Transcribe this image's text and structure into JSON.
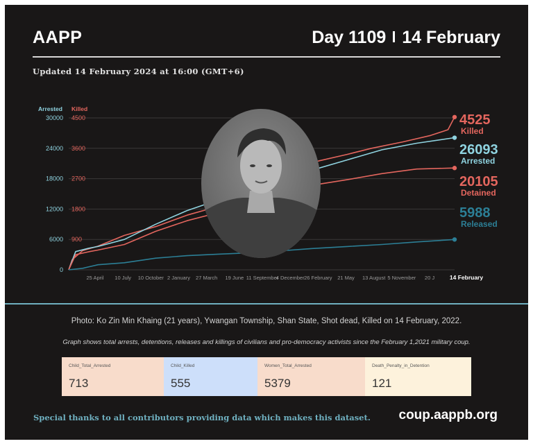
{
  "header": {
    "brand": "AAPP",
    "day_label": "Day 1109",
    "date_label": "14 February",
    "updated": "Updated 14 February 2024 at 16:00 (GMT+6)"
  },
  "chart_data": {
    "type": "line",
    "left_axis_label": "Arrested",
    "right_axis_label": "Killed",
    "arrested_ticks": [
      0,
      6000,
      12000,
      18000,
      24000,
      30000
    ],
    "killed_ticks": [
      "",
      "900",
      "1800",
      "2700",
      "3600",
      "4500"
    ],
    "ylim_arrested": [
      0,
      30000
    ],
    "ylim_killed": [
      0,
      4500
    ],
    "x_ticks": [
      "25 April",
      "10 July",
      "10 October",
      "2 January",
      "27 March",
      "19 June",
      "11 September",
      "4 December",
      "26 February",
      "21 May",
      "13 August",
      "5 November",
      "20 J",
      "14 February"
    ],
    "x_range_days": [
      0,
      1109
    ],
    "grid": true,
    "series": [
      {
        "name": "Killed",
        "axis": "killed",
        "color": "#e4665e",
        "final_value": 4525,
        "x": [
          0,
          10,
          40,
          84,
          160,
          250,
          340,
          430,
          500,
          560,
          600,
          650,
          720,
          800,
          870,
          960,
          1040,
          1090,
          1109
        ],
        "values": [
          0,
          300,
          570,
          700,
          1020,
          1280,
          1620,
          1880,
          2130,
          2560,
          2640,
          3000,
          3230,
          3420,
          3600,
          3790,
          3980,
          4150,
          4525
        ]
      },
      {
        "name": "Arrested",
        "axis": "arrested",
        "color": "#8fd3e0",
        "final_value": 26093,
        "x": [
          0,
          20,
          60,
          84,
          160,
          250,
          340,
          430,
          500,
          560,
          600,
          700,
          800,
          900,
          1000,
          1109
        ],
        "values": [
          0,
          3600,
          4300,
          4600,
          6000,
          9000,
          11700,
          13800,
          14900,
          15600,
          17500,
          19700,
          21700,
          23700,
          25000,
          26093
        ]
      },
      {
        "name": "Detained",
        "axis": "arrested",
        "color": "#e4665e",
        "final_value": 20105,
        "x": [
          0,
          20,
          60,
          84,
          160,
          250,
          340,
          430,
          500,
          560,
          600,
          700,
          800,
          900,
          1000,
          1109
        ],
        "values": [
          0,
          3000,
          3600,
          3900,
          5000,
          7600,
          9700,
          11300,
          12300,
          13000,
          15300,
          16700,
          17800,
          19000,
          19900,
          20105
        ]
      },
      {
        "name": "Released",
        "axis": "arrested",
        "color": "#2c7f96",
        "final_value": 5988,
        "x": [
          0,
          40,
          84,
          160,
          250,
          340,
          430,
          500,
          560,
          600,
          700,
          800,
          900,
          1000,
          1109
        ],
        "values": [
          0,
          300,
          1000,
          1400,
          2300,
          2800,
          3100,
          3300,
          3500,
          3700,
          4200,
          4600,
          5000,
          5500,
          5988
        ]
      }
    ],
    "labels": [
      {
        "value": "4525",
        "name": "Killed",
        "color": "#e4665e"
      },
      {
        "value": "26093",
        "name": "Arrested",
        "color": "#8fd3e0"
      },
      {
        "value": "20105",
        "name": "Detained",
        "color": "#e4665e"
      },
      {
        "value": "5988",
        "name": "Released",
        "color": "#2c7f96"
      }
    ]
  },
  "photo_caption": "Photo: Ko Zin Min Khaing (21 years), Ywangan Township, Shan State, Shot dead, Killed on 14 February, 2022.",
  "graph_note": "Graph shows total arrests, detentions, releases and killings of civilians and pro-democracy activists since the February 1,2021 military coup.",
  "stats": [
    {
      "title": "Child_Total_Arrested",
      "value": "713",
      "bg": "#f8dccb"
    },
    {
      "title": "Child_Killed",
      "value": "555",
      "bg": "#cddffa"
    },
    {
      "title": "Women_Total_Arrested",
      "value": "5379",
      "bg": "#f8dccb"
    },
    {
      "title": "Death_Penalty_in_Detention",
      "value": "121",
      "bg": "#fdf2dc"
    }
  ],
  "footer": {
    "thanks": "Special thanks to all contributors providing data which makes this dataset.",
    "site": "coup.aappb.org"
  },
  "colors": {
    "background": "#191717",
    "accent": "#6fb0c0",
    "killed": "#e4665e",
    "arrested": "#8fd3e0",
    "released": "#2c7f96"
  }
}
